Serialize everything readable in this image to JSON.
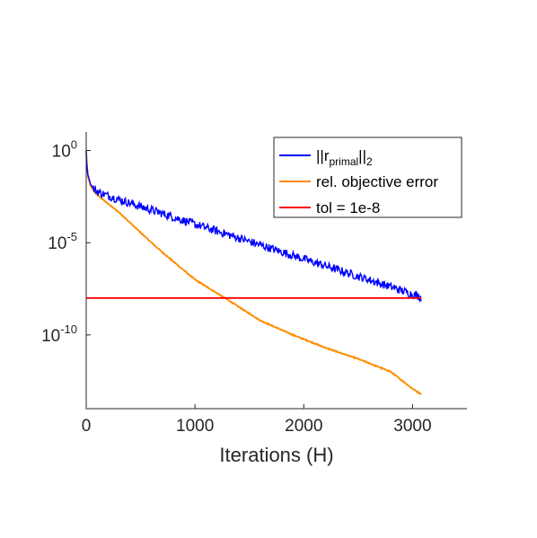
{
  "chart_data": {
    "type": "line",
    "xlabel": "Iterations (H)",
    "ylabel": "",
    "xlim": [
      0,
      3500
    ],
    "ylim": [
      1e-14,
      10
    ],
    "yscale": "log",
    "grid": false,
    "legend_position": "top-right",
    "x_ticks": [
      {
        "value": 0,
        "label": "0"
      },
      {
        "value": 1000,
        "label": "1000"
      },
      {
        "value": 2000,
        "label": "2000"
      },
      {
        "value": 3000,
        "label": "3000"
      }
    ],
    "y_ticks": [
      {
        "value": 1,
        "base": "10",
        "exp": "0"
      },
      {
        "value": 1e-05,
        "base": "10",
        "exp": "-5"
      },
      {
        "value": 1e-10,
        "base": "10",
        "exp": "-10"
      }
    ],
    "series": [
      {
        "legend": {
          "prefix": "||r",
          "subscript": "primal",
          "mid": "||",
          "subscript2": "2"
        },
        "color": "#0000ff",
        "noisy": true,
        "x": [
          0,
          5,
          15,
          40,
          70,
          100,
          200,
          300,
          500,
          700,
          1000,
          1300,
          1600,
          1900,
          2200,
          2500,
          2800,
          3000,
          3080
        ],
        "y": [
          1,
          0.2,
          0.05,
          0.015,
          0.008,
          0.006,
          0.0035,
          0.0022,
          0.0009,
          0.00038,
          0.0001,
          2.8e-05,
          7.5e-06,
          2e-06,
          5.5e-07,
          1.5e-07,
          4e-08,
          1.6e-08,
          1.1e-08
        ]
      },
      {
        "legend": {
          "text": "rel. objective error"
        },
        "color": "#ff8c00",
        "noisy": false,
        "x": [
          0,
          5,
          15,
          40,
          70,
          100,
          200,
          300,
          500,
          700,
          1000,
          1300,
          1600,
          1900,
          2200,
          2500,
          2800,
          3000,
          3080
        ],
        "y": [
          1,
          0.2,
          0.04,
          0.012,
          0.006,
          0.004,
          0.0013,
          0.00045,
          3.5e-05,
          3e-06,
          1e-07,
          8e-09,
          6e-10,
          1e-10,
          2e-11,
          5e-12,
          1e-12,
          1.2e-13,
          6e-14
        ]
      },
      {
        "legend": {
          "text": "tol = 1e-8"
        },
        "color": "#ff0000",
        "noisy": false,
        "x": [
          0,
          3080
        ],
        "y": [
          1e-08,
          1e-08
        ]
      }
    ]
  }
}
